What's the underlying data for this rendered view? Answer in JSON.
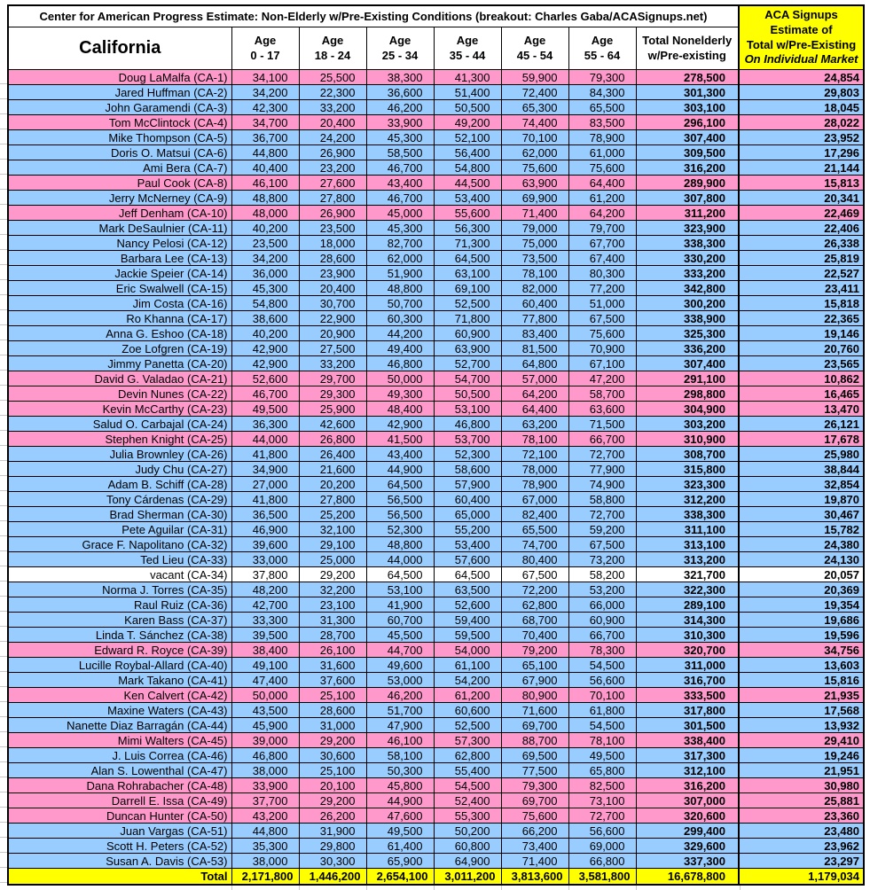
{
  "title": "Center for American Progress Estimate: Non-Elderly w/Pre-Existing Conditions (breakout: Charles Gaba/ACASignups.net)",
  "aca_box": {
    "line1": "ACA Signups",
    "line2": "Estimate of",
    "line3": "Total w/Pre-Existing",
    "line4": "On Individual Market"
  },
  "columns": {
    "state": "California",
    "ages": [
      {
        "l1": "Age",
        "l2": "0 - 17"
      },
      {
        "l1": "Age",
        "l2": "18 - 24"
      },
      {
        "l1": "Age",
        "l2": "25 - 34"
      },
      {
        "l1": "Age",
        "l2": "35 - 44"
      },
      {
        "l1": "Age",
        "l2": "45 - 54"
      },
      {
        "l1": "Age",
        "l2": "55 - 64"
      }
    ],
    "total_l1": "Total Nonelderly",
    "total_l2": "w/Pre-existing"
  },
  "colors": {
    "republican_row": "#FF99CC",
    "democrat_row": "#99CCFF",
    "vacant_row": "#FFFFFF",
    "total_row": "#FFFF00",
    "border": "#000000"
  },
  "rows": [
    {
      "name": "Doug LaMalfa (CA-1)",
      "party": "r",
      "values": [
        "34,100",
        "25,500",
        "38,300",
        "41,300",
        "59,900",
        "79,300"
      ],
      "total": "278,500",
      "aca": "24,854"
    },
    {
      "name": "Jared Huffman (CA-2)",
      "party": "d",
      "values": [
        "34,200",
        "22,300",
        "36,600",
        "51,400",
        "72,400",
        "84,300"
      ],
      "total": "301,300",
      "aca": "29,803"
    },
    {
      "name": "John Garamendi (CA-3)",
      "party": "d",
      "values": [
        "42,300",
        "33,200",
        "46,200",
        "50,500",
        "65,300",
        "65,500"
      ],
      "total": "303,100",
      "aca": "18,045"
    },
    {
      "name": "Tom McClintock (CA-4)",
      "party": "r",
      "values": [
        "34,700",
        "20,400",
        "33,900",
        "49,200",
        "74,400",
        "83,500"
      ],
      "total": "296,100",
      "aca": "28,022"
    },
    {
      "name": "Mike Thompson (CA-5)",
      "party": "d",
      "values": [
        "36,700",
        "24,200",
        "45,300",
        "52,100",
        "70,100",
        "78,900"
      ],
      "total": "307,400",
      "aca": "23,952"
    },
    {
      "name": "Doris O. Matsui (CA-6)",
      "party": "d",
      "values": [
        "44,800",
        "26,900",
        "58,500",
        "56,400",
        "62,000",
        "61,000"
      ],
      "total": "309,500",
      "aca": "17,296"
    },
    {
      "name": "Ami Bera (CA-7)",
      "party": "d",
      "values": [
        "40,400",
        "23,200",
        "46,700",
        "54,800",
        "75,600",
        "75,600"
      ],
      "total": "316,200",
      "aca": "21,144"
    },
    {
      "name": "Paul Cook (CA-8)",
      "party": "r",
      "values": [
        "46,100",
        "27,600",
        "43,400",
        "44,500",
        "63,900",
        "64,400"
      ],
      "total": "289,900",
      "aca": "15,813"
    },
    {
      "name": "Jerry McNerney (CA-9)",
      "party": "d",
      "values": [
        "48,800",
        "27,800",
        "46,700",
        "53,400",
        "69,900",
        "61,200"
      ],
      "total": "307,800",
      "aca": "20,341"
    },
    {
      "name": "Jeff Denham (CA-10)",
      "party": "r",
      "values": [
        "48,000",
        "26,900",
        "45,000",
        "55,600",
        "71,400",
        "64,200"
      ],
      "total": "311,200",
      "aca": "22,469"
    },
    {
      "name": "Mark DeSaulnier (CA-11)",
      "party": "d",
      "values": [
        "40,200",
        "23,500",
        "45,300",
        "56,300",
        "79,000",
        "79,700"
      ],
      "total": "323,900",
      "aca": "22,406"
    },
    {
      "name": "Nancy Pelosi (CA-12)",
      "party": "d",
      "values": [
        "23,500",
        "18,000",
        "82,700",
        "71,300",
        "75,000",
        "67,700"
      ],
      "total": "338,300",
      "aca": "26,338"
    },
    {
      "name": "Barbara Lee (CA-13)",
      "party": "d",
      "values": [
        "34,200",
        "28,600",
        "62,000",
        "64,500",
        "73,500",
        "67,400"
      ],
      "total": "330,200",
      "aca": "25,819"
    },
    {
      "name": "Jackie Speier (CA-14)",
      "party": "d",
      "values": [
        "36,000",
        "23,900",
        "51,900",
        "63,100",
        "78,100",
        "80,300"
      ],
      "total": "333,200",
      "aca": "22,527"
    },
    {
      "name": "Eric Swalwell (CA-15)",
      "party": "d",
      "values": [
        "45,300",
        "20,400",
        "48,800",
        "69,100",
        "82,000",
        "77,200"
      ],
      "total": "342,800",
      "aca": "23,411"
    },
    {
      "name": "Jim Costa (CA-16)",
      "party": "d",
      "values": [
        "54,800",
        "30,700",
        "50,700",
        "52,500",
        "60,400",
        "51,000"
      ],
      "total": "300,200",
      "aca": "15,818"
    },
    {
      "name": "Ro Khanna (CA-17)",
      "party": "d",
      "values": [
        "38,600",
        "22,900",
        "60,300",
        "71,800",
        "77,800",
        "67,500"
      ],
      "total": "338,900",
      "aca": "22,365"
    },
    {
      "name": "Anna G. Eshoo (CA-18)",
      "party": "d",
      "values": [
        "40,200",
        "20,900",
        "44,200",
        "60,900",
        "83,400",
        "75,600"
      ],
      "total": "325,300",
      "aca": "19,146"
    },
    {
      "name": "Zoe Lofgren (CA-19)",
      "party": "d",
      "values": [
        "42,900",
        "27,500",
        "49,400",
        "63,900",
        "81,500",
        "70,900"
      ],
      "total": "336,200",
      "aca": "20,760"
    },
    {
      "name": "Jimmy Panetta (CA-20)",
      "party": "d",
      "values": [
        "42,900",
        "33,200",
        "46,800",
        "52,700",
        "64,800",
        "67,100"
      ],
      "total": "307,400",
      "aca": "23,565"
    },
    {
      "name": "David G. Valadao (CA-21)",
      "party": "r",
      "values": [
        "52,600",
        "29,700",
        "50,000",
        "54,700",
        "57,000",
        "47,200"
      ],
      "total": "291,100",
      "aca": "10,862"
    },
    {
      "name": "Devin Nunes (CA-22)",
      "party": "r",
      "values": [
        "46,700",
        "29,300",
        "49,300",
        "50,500",
        "64,200",
        "58,700"
      ],
      "total": "298,800",
      "aca": "16,465"
    },
    {
      "name": "Kevin McCarthy (CA-23)",
      "party": "r",
      "values": [
        "49,500",
        "25,900",
        "48,400",
        "53,100",
        "64,400",
        "63,600"
      ],
      "total": "304,900",
      "aca": "13,470"
    },
    {
      "name": "Salud O. Carbajal (CA-24)",
      "party": "d",
      "values": [
        "36,300",
        "42,600",
        "42,900",
        "46,800",
        "63,200",
        "71,500"
      ],
      "total": "303,200",
      "aca": "26,121"
    },
    {
      "name": "Stephen Knight (CA-25)",
      "party": "r",
      "values": [
        "44,000",
        "26,800",
        "41,500",
        "53,700",
        "78,100",
        "66,700"
      ],
      "total": "310,900",
      "aca": "17,678"
    },
    {
      "name": "Julia Brownley (CA-26)",
      "party": "d",
      "values": [
        "41,800",
        "26,400",
        "43,400",
        "52,300",
        "72,100",
        "72,700"
      ],
      "total": "308,700",
      "aca": "25,980"
    },
    {
      "name": "Judy Chu (CA-27)",
      "party": "d",
      "values": [
        "34,900",
        "21,600",
        "44,900",
        "58,600",
        "78,000",
        "77,900"
      ],
      "total": "315,800",
      "aca": "38,844"
    },
    {
      "name": "Adam B. Schiff (CA-28)",
      "party": "d",
      "values": [
        "27,000",
        "20,200",
        "64,500",
        "57,900",
        "78,900",
        "74,900"
      ],
      "total": "323,300",
      "aca": "32,854"
    },
    {
      "name": "Tony Cárdenas (CA-29)",
      "party": "d",
      "values": [
        "41,800",
        "27,800",
        "56,500",
        "60,400",
        "67,000",
        "58,800"
      ],
      "total": "312,200",
      "aca": "19,870"
    },
    {
      "name": "Brad Sherman (CA-30)",
      "party": "d",
      "values": [
        "36,500",
        "25,200",
        "56,500",
        "65,000",
        "82,400",
        "72,700"
      ],
      "total": "338,300",
      "aca": "30,467"
    },
    {
      "name": "Pete Aguilar (CA-31)",
      "party": "d",
      "values": [
        "46,900",
        "32,100",
        "52,300",
        "55,200",
        "65,500",
        "59,200"
      ],
      "total": "311,100",
      "aca": "15,782"
    },
    {
      "name": "Grace F. Napolitano (CA-32)",
      "party": "d",
      "values": [
        "39,600",
        "29,100",
        "48,800",
        "53,400",
        "74,700",
        "67,500"
      ],
      "total": "313,100",
      "aca": "24,380"
    },
    {
      "name": "Ted Lieu (CA-33)",
      "party": "d",
      "values": [
        "33,000",
        "25,000",
        "44,000",
        "57,600",
        "80,400",
        "73,200"
      ],
      "total": "313,200",
      "aca": "24,130"
    },
    {
      "name": "vacant (CA-34)",
      "party": "v",
      "values": [
        "37,800",
        "29,200",
        "64,500",
        "64,500",
        "67,500",
        "58,200"
      ],
      "total": "321,700",
      "aca": "20,057"
    },
    {
      "name": "Norma J. Torres (CA-35)",
      "party": "d",
      "values": [
        "48,200",
        "32,200",
        "53,100",
        "63,500",
        "72,200",
        "53,200"
      ],
      "total": "322,300",
      "aca": "20,369"
    },
    {
      "name": "Raul Ruiz (CA-36)",
      "party": "d",
      "values": [
        "42,700",
        "23,100",
        "41,900",
        "52,600",
        "62,800",
        "66,000"
      ],
      "total": "289,100",
      "aca": "19,354"
    },
    {
      "name": "Karen Bass (CA-37)",
      "party": "d",
      "values": [
        "33,300",
        "31,300",
        "60,700",
        "59,400",
        "68,700",
        "60,900"
      ],
      "total": "314,300",
      "aca": "19,686"
    },
    {
      "name": "Linda T. Sánchez (CA-38)",
      "party": "d",
      "values": [
        "39,500",
        "28,700",
        "45,500",
        "59,500",
        "70,400",
        "66,700"
      ],
      "total": "310,300",
      "aca": "19,596"
    },
    {
      "name": "Edward R. Royce (CA-39)",
      "party": "r",
      "values": [
        "38,400",
        "26,100",
        "44,700",
        "54,000",
        "79,200",
        "78,300"
      ],
      "total": "320,700",
      "aca": "34,756"
    },
    {
      "name": "Lucille Roybal-Allard (CA-40)",
      "party": "d",
      "values": [
        "49,100",
        "31,600",
        "49,600",
        "61,100",
        "65,100",
        "54,500"
      ],
      "total": "311,000",
      "aca": "13,603"
    },
    {
      "name": "Mark Takano (CA-41)",
      "party": "d",
      "values": [
        "47,400",
        "37,600",
        "53,000",
        "54,200",
        "67,900",
        "56,600"
      ],
      "total": "316,700",
      "aca": "15,816"
    },
    {
      "name": "Ken Calvert (CA-42)",
      "party": "r",
      "values": [
        "50,000",
        "25,100",
        "46,200",
        "61,200",
        "80,900",
        "70,100"
      ],
      "total": "333,500",
      "aca": "21,935"
    },
    {
      "name": "Maxine Waters (CA-43)",
      "party": "d",
      "values": [
        "43,500",
        "28,600",
        "51,700",
        "60,600",
        "71,600",
        "61,800"
      ],
      "total": "317,800",
      "aca": "17,568"
    },
    {
      "name": "Nanette Diaz Barragán (CA-44)",
      "party": "d",
      "values": [
        "45,900",
        "31,000",
        "47,900",
        "52,500",
        "69,700",
        "54,500"
      ],
      "total": "301,500",
      "aca": "13,932"
    },
    {
      "name": "Mimi Walters (CA-45)",
      "party": "r",
      "values": [
        "39,000",
        "29,200",
        "46,100",
        "57,300",
        "88,700",
        "78,100"
      ],
      "total": "338,400",
      "aca": "29,410"
    },
    {
      "name": "J. Luis Correa (CA-46)",
      "party": "d",
      "values": [
        "46,800",
        "30,600",
        "58,100",
        "62,800",
        "69,500",
        "49,500"
      ],
      "total": "317,300",
      "aca": "19,246"
    },
    {
      "name": "Alan S. Lowenthal (CA-47)",
      "party": "d",
      "values": [
        "38,000",
        "25,100",
        "50,300",
        "55,400",
        "77,500",
        "65,800"
      ],
      "total": "312,100",
      "aca": "21,951"
    },
    {
      "name": "Dana Rohrabacher (CA-48)",
      "party": "r",
      "values": [
        "33,900",
        "20,100",
        "45,800",
        "54,500",
        "79,300",
        "82,500"
      ],
      "total": "316,200",
      "aca": "30,980"
    },
    {
      "name": "Darrell E. Issa (CA-49)",
      "party": "r",
      "values": [
        "37,700",
        "29,200",
        "44,900",
        "52,400",
        "69,700",
        "73,100"
      ],
      "total": "307,000",
      "aca": "25,881"
    },
    {
      "name": "Duncan Hunter (CA-50)",
      "party": "r",
      "values": [
        "43,200",
        "26,200",
        "47,600",
        "55,300",
        "75,600",
        "72,700"
      ],
      "total": "320,600",
      "aca": "23,360"
    },
    {
      "name": "Juan Vargas (CA-51)",
      "party": "d",
      "values": [
        "44,800",
        "31,900",
        "49,500",
        "50,200",
        "66,200",
        "56,600"
      ],
      "total": "299,400",
      "aca": "23,480"
    },
    {
      "name": "Scott H. Peters (CA-52)",
      "party": "d",
      "values": [
        "35,300",
        "29,800",
        "61,400",
        "60,800",
        "73,400",
        "69,000"
      ],
      "total": "329,600",
      "aca": "23,962"
    },
    {
      "name": "Susan A. Davis (CA-53)",
      "party": "d",
      "values": [
        "38,000",
        "30,300",
        "65,900",
        "64,900",
        "71,400",
        "66,800"
      ],
      "total": "337,300",
      "aca": "23,297"
    }
  ],
  "total_row": {
    "label": "Total",
    "values": [
      "2,171,800",
      "1,446,200",
      "2,654,100",
      "3,011,200",
      "3,813,600",
      "3,581,800"
    ],
    "total": "16,678,800",
    "aca": "1,179,034"
  }
}
